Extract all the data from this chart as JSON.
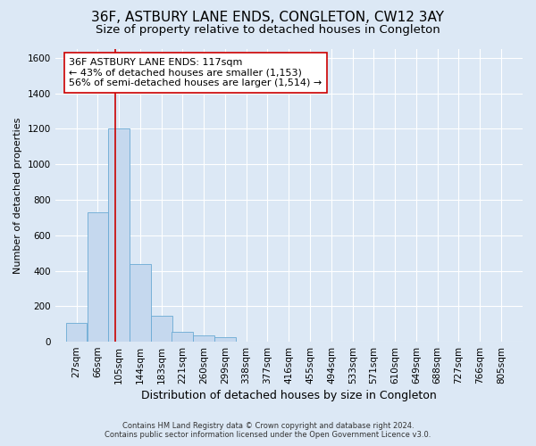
{
  "title": "36F, ASTBURY LANE ENDS, CONGLETON, CW12 3AY",
  "subtitle": "Size of property relative to detached houses in Congleton",
  "xlabel": "Distribution of detached houses by size in Congleton",
  "ylabel": "Number of detached properties",
  "footer_line1": "Contains HM Land Registry data © Crown copyright and database right 2024.",
  "footer_line2": "Contains public sector information licensed under the Open Government Licence v3.0.",
  "bin_edges": [
    27,
    66,
    105,
    144,
    183,
    221,
    260,
    299,
    338,
    377,
    416,
    455,
    494,
    533,
    571,
    610,
    649,
    688,
    727,
    766,
    805
  ],
  "bar_heights": [
    105,
    730,
    1200,
    440,
    145,
    58,
    35,
    28,
    0,
    0,
    0,
    0,
    0,
    0,
    0,
    0,
    0,
    0,
    0,
    0
  ],
  "bar_color": "#c5d8ee",
  "bar_edgecolor": "#6aaad4",
  "property_size": 117,
  "red_line_color": "#cc0000",
  "annotation_line1": "36F ASTBURY LANE ENDS: 117sqm",
  "annotation_line2": "← 43% of detached houses are smaller (1,153)",
  "annotation_line3": "56% of semi-detached houses are larger (1,514) →",
  "annotation_box_edgecolor": "#cc0000",
  "annotation_box_facecolor": "#ffffff",
  "ylim": [
    0,
    1650
  ],
  "yticks": [
    0,
    200,
    400,
    600,
    800,
    1000,
    1200,
    1400,
    1600
  ],
  "background_color": "#dce8f5",
  "plot_background": "#dce8f5",
  "grid_color": "#ffffff",
  "title_fontsize": 11,
  "subtitle_fontsize": 9.5,
  "xlabel_fontsize": 9,
  "ylabel_fontsize": 8,
  "tick_fontsize": 7.5,
  "annotation_fontsize": 8
}
